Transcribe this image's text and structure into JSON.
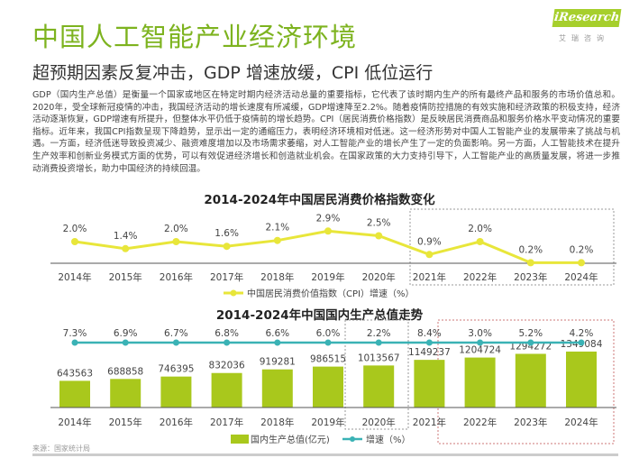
{
  "header": {
    "title": "中国人工智能产业经济环境",
    "subtitle": "超预期因素反复冲击，GDP 增速放缓，CPI 低位运行",
    "logo": "iResearch",
    "logo_sub": "艾瑞咨询"
  },
  "paragraph": "GDP（国内生产总值）是衡量一个国家或地区在特定时期内经济活动总量的重要指标，它代表了该时期内生产的所有最终产品和服务的市场价值总和。2020年，受全球新冠疫情的冲击，我国经济活动的增长速度有所减缓，GDP增速降至2.2%。随着疫情防控措施的有效实施和经济政策的积极支持，经济活动逐渐恢复，GDP增速有所提升，但整体水平仍低于疫情前的增长趋势。CPI（居民消费价格指数）是反映居民消费商品和服务价格水平变动情况的重要指标。近年来，我国CPI指数呈现下降趋势，显示出一定的通缩压力，表明经济环境相对低迷。这一经济形势对中国人工智能产业的发展带来了挑战与机遇。一方面，经济低迷导致投资减少、融资难度增加以及市场需求萎缩，对人工智能产业的增长产生了一定的负面影响。另一方面，人工智能技术在提升生产效率和创新业务模式方面的优势，可以有效促进经济增长和创造就业机会。在国家政策的大力支持引导下，人工智能产业的高质量发展，将进一步推动消费投资增长，助力中国经济的持续回温。",
  "source": "来源：国家统计局",
  "chart_data": [
    {
      "type": "line",
      "title": "2014-2024年中国居民消费价格指数变化",
      "categories": [
        "2014年",
        "2015年",
        "2016年",
        "2017年",
        "2018年",
        "2019年",
        "2020年",
        "2021年",
        "2022年",
        "2023年",
        "2024年"
      ],
      "series": [
        {
          "name": "中国居民消费价值指数（CPI）增速（%）",
          "values": [
            2.0,
            1.4,
            2.0,
            1.6,
            2.1,
            2.9,
            2.5,
            0.9,
            2.0,
            0.2,
            0.2
          ],
          "labels": [
            "2.0%",
            "1.4%",
            "2.0%",
            "1.6%",
            "2.1%",
            "2.9%",
            "2.5%",
            "0.9%",
            "2.0%",
            "0.2%",
            "0.2%"
          ],
          "color": "#e8e63a"
        }
      ],
      "legend": "bottom",
      "highlight": [
        "2021年",
        "2024年"
      ]
    },
    {
      "type": "bar",
      "title": "2014-2024年中国国内生产总值走势",
      "categories": [
        "2014年",
        "2015年",
        "2016年",
        "2017年",
        "2018年",
        "2019年",
        "2020年",
        "2021年",
        "2022年",
        "2023年",
        "2024年"
      ],
      "series": [
        {
          "name": "国内生产总值(亿元)",
          "type": "bar",
          "values": [
            643563,
            688858,
            746395,
            832036,
            919281,
            986515,
            1013567,
            1149237,
            1204724,
            1294272,
            1349084
          ],
          "color": "#a9c81c"
        },
        {
          "name": "增速（%）",
          "type": "line",
          "values": [
            7.3,
            6.9,
            6.7,
            6.8,
            6.6,
            6.0,
            2.2,
            8.4,
            3.0,
            5.2,
            4.2
          ],
          "labels": [
            "7.3%",
            "6.9%",
            "6.7%",
            "6.8%",
            "6.6%",
            "6.0%",
            "2.2%",
            "8.4%",
            "3.0%",
            "5.2%",
            "4.2%"
          ],
          "color": "#3ab2b5"
        }
      ],
      "legend": "bottom",
      "highlight": [
        "2020年",
        "2022年-2024年"
      ]
    }
  ]
}
